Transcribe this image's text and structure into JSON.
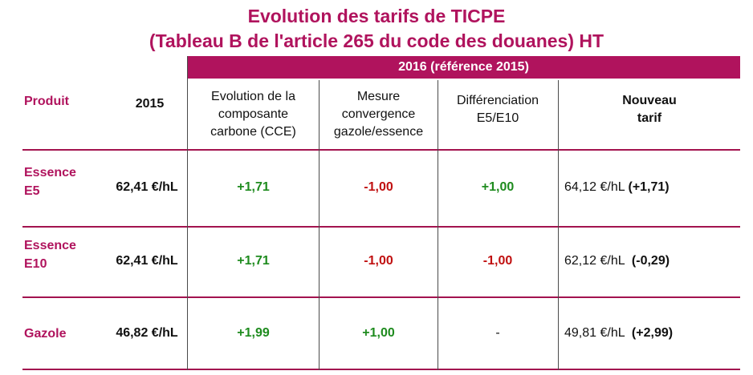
{
  "title_line1": "Evolution des tarifs de TICPE",
  "title_line2": "(Tableau B de l'article 265 du code des douanes) HT",
  "band_label": "2016 (référence 2015)",
  "headers": {
    "produit": "Produit",
    "year": "2015",
    "cce": [
      "Evolution de la",
      "composante",
      "carbone (CCE)"
    ],
    "mesure": [
      "Mesure",
      "convergence",
      "gazole/essence"
    ],
    "diff": [
      "Différenciation",
      "E5/E10"
    ],
    "nouveau": [
      "Nouveau",
      "tarif"
    ]
  },
  "rows": [
    {
      "produit": [
        "Essence",
        "E5"
      ],
      "base": "62,41 €/hL",
      "cce": "+1,71",
      "mesure": "-1,00",
      "diff": "+1,00",
      "nouveau_value": "64,12 €/hL ",
      "nouveau_delta": "(+1,71)"
    },
    {
      "produit": [
        "Essence",
        "E10"
      ],
      "base": "62,41 €/hL",
      "cce": "+1,71",
      "mesure": "-1,00",
      "diff": "-1,00",
      "nouveau_value": "62,12 €/hL  ",
      "nouveau_delta": "(-0,29)"
    },
    {
      "produit": [
        "Gazole"
      ],
      "base": "46,82 €/hL",
      "cce": "+1,99",
      "mesure": "+1,00",
      "diff": "-",
      "nouveau_value": "49,81 €/hL  ",
      "nouveau_delta": "(+2,99)"
    }
  ],
  "colors": {
    "accent": "#b0135d",
    "positive": "#1e8b1e",
    "negative": "#c01010"
  }
}
